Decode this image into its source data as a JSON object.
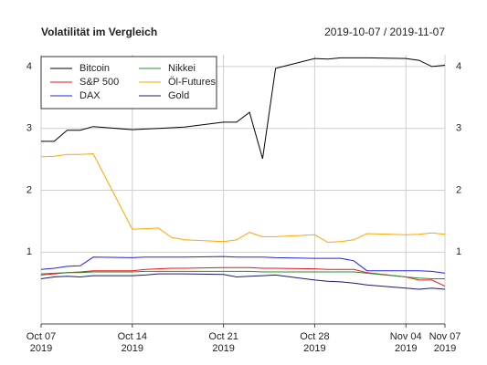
{
  "chart_data": {
    "type": "line",
    "title": "Volatilität im Vergleich",
    "subtitle": "2019-10-07 / 2019-11-07",
    "x": [
      "2019-10-07",
      "2019-10-08",
      "2019-10-09",
      "2019-10-10",
      "2019-10-11",
      "2019-10-14",
      "2019-10-15",
      "2019-10-16",
      "2019-10-17",
      "2019-10-18",
      "2019-10-21",
      "2019-10-22",
      "2019-10-23",
      "2019-10-24",
      "2019-10-25",
      "2019-10-28",
      "2019-10-29",
      "2019-10-30",
      "2019-10-31",
      "2019-11-01",
      "2019-11-04",
      "2019-11-05",
      "2019-11-06",
      "2019-11-07"
    ],
    "series": [
      {
        "name": "Bitcoin",
        "color": "#000000",
        "values": [
          2.79,
          2.79,
          2.97,
          2.97,
          3.03,
          2.98,
          2.99,
          3.0,
          3.01,
          3.02,
          3.1,
          3.1,
          3.26,
          2.51,
          3.97,
          4.13,
          4.12,
          4.14,
          4.14,
          4.14,
          4.13,
          4.1,
          4.0,
          4.02
        ]
      },
      {
        "name": "S&P 500",
        "color": "#e8161b",
        "values": [
          0.63,
          0.65,
          0.67,
          0.68,
          0.7,
          0.7,
          0.72,
          0.73,
          0.74,
          0.74,
          0.75,
          0.75,
          0.75,
          0.74,
          0.74,
          0.73,
          0.72,
          0.72,
          0.72,
          0.67,
          0.6,
          0.55,
          0.55,
          0.45
        ]
      },
      {
        "name": "DAX",
        "color": "#2222e0",
        "values": [
          0.72,
          0.74,
          0.77,
          0.78,
          0.92,
          0.91,
          0.92,
          0.92,
          0.92,
          0.92,
          0.93,
          0.92,
          0.92,
          0.92,
          0.91,
          0.9,
          0.9,
          0.9,
          0.86,
          0.7,
          0.7,
          0.7,
          0.69,
          0.66
        ]
      },
      {
        "name": "Nikkei",
        "color": "#2e8b2e",
        "values": [
          0.65,
          0.66,
          0.67,
          0.67,
          0.68,
          0.68,
          0.69,
          0.69,
          0.69,
          0.69,
          0.69,
          0.69,
          0.69,
          0.68,
          0.68,
          0.68,
          0.68,
          0.68,
          0.68,
          0.66,
          0.6,
          0.58,
          0.57,
          0.57
        ]
      },
      {
        "name": "Öl-Futures",
        "color": "#ffa500",
        "values": [
          2.54,
          2.55,
          2.58,
          2.58,
          2.59,
          1.37,
          1.38,
          1.39,
          1.24,
          1.2,
          1.17,
          1.2,
          1.32,
          1.25,
          1.25,
          1.28,
          1.16,
          1.17,
          1.2,
          1.3,
          1.28,
          1.29,
          1.31,
          1.29
        ]
      },
      {
        "name": "Gold",
        "color": "#191970",
        "values": [
          0.57,
          0.6,
          0.61,
          0.6,
          0.62,
          0.62,
          0.63,
          0.65,
          0.65,
          0.65,
          0.64,
          0.6,
          0.61,
          0.62,
          0.63,
          0.55,
          0.53,
          0.52,
          0.5,
          0.47,
          0.42,
          0.4,
          0.42,
          0.4
        ]
      }
    ],
    "xlim": [
      "2019-10-07",
      "2019-11-07"
    ],
    "xticks": [
      {
        "value": "2019-10-07",
        "label": "Oct 07\n2019"
      },
      {
        "value": "2019-10-14",
        "label": "Oct 14\n2019"
      },
      {
        "value": "2019-10-21",
        "label": "Oct 21\n2019"
      },
      {
        "value": "2019-10-28",
        "label": "Oct 28\n2019"
      },
      {
        "value": "2019-11-04",
        "label": "Nov 04\n2019"
      },
      {
        "value": "2019-11-07",
        "label": "Nov 07\n2019"
      }
    ],
    "ylim": [
      -0.16,
      4.19
    ],
    "yticks": [
      1,
      2,
      3,
      4
    ],
    "grid": true,
    "legend": "top-left"
  }
}
